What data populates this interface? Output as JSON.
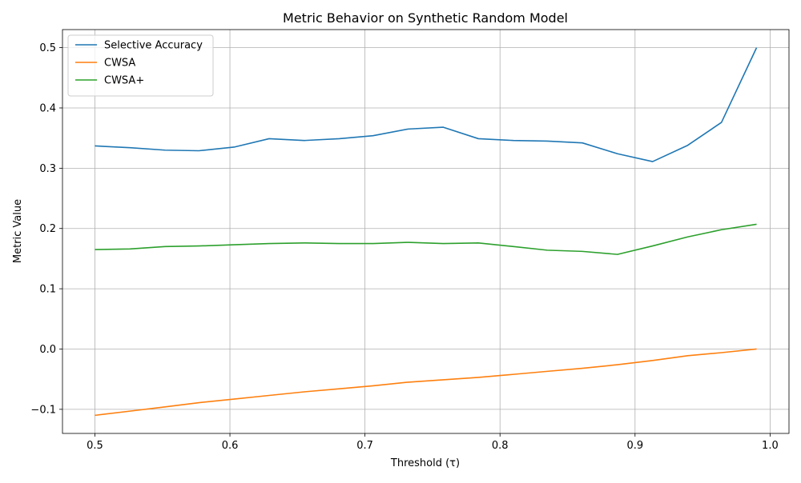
{
  "chart_data": {
    "type": "line",
    "title": "Metric Behavior on Synthetic Random Model",
    "xlabel": "Threshold (τ)",
    "ylabel": "Metric Value",
    "xlim": [
      0.476,
      1.014
    ],
    "ylim": [
      -0.14,
      0.53
    ],
    "xticks": [
      0.5,
      0.6,
      0.7,
      0.8,
      0.9,
      1.0
    ],
    "xtick_labels": [
      "0.5",
      "0.6",
      "0.7",
      "0.8",
      "0.9",
      "1.0"
    ],
    "yticks": [
      -0.1,
      0.0,
      0.1,
      0.2,
      0.3,
      0.4,
      0.5
    ],
    "ytick_labels": [
      "−0.1",
      "0.0",
      "0.1",
      "0.2",
      "0.3",
      "0.4",
      "0.5"
    ],
    "grid": true,
    "legend_position": "top-left",
    "x": [
      0.5,
      0.526,
      0.552,
      0.577,
      0.603,
      0.629,
      0.655,
      0.681,
      0.706,
      0.732,
      0.758,
      0.784,
      0.81,
      0.835,
      0.861,
      0.887,
      0.913,
      0.939,
      0.964,
      0.99
    ],
    "series": [
      {
        "name": "Selective Accuracy",
        "color": "#1f77b4",
        "values": [
          0.337,
          0.334,
          0.33,
          0.329,
          0.335,
          0.349,
          0.346,
          0.349,
          0.354,
          0.365,
          0.368,
          0.349,
          0.346,
          0.345,
          0.342,
          0.324,
          0.311,
          0.338,
          0.376,
          0.5
        ]
      },
      {
        "name": "CWSA",
        "color": "#ff7f0e",
        "values": [
          -0.11,
          -0.103,
          -0.096,
          -0.089,
          -0.083,
          -0.077,
          -0.071,
          -0.066,
          -0.061,
          -0.055,
          -0.051,
          -0.047,
          -0.042,
          -0.037,
          -0.032,
          -0.026,
          -0.019,
          -0.011,
          -0.006,
          0.0
        ]
      },
      {
        "name": "CWSA+",
        "color": "#2ca02c",
        "values": [
          0.165,
          0.166,
          0.17,
          0.171,
          0.173,
          0.175,
          0.176,
          0.175,
          0.175,
          0.177,
          0.175,
          0.176,
          0.17,
          0.164,
          0.162,
          0.157,
          0.171,
          0.186,
          0.198,
          0.207
        ]
      }
    ]
  }
}
